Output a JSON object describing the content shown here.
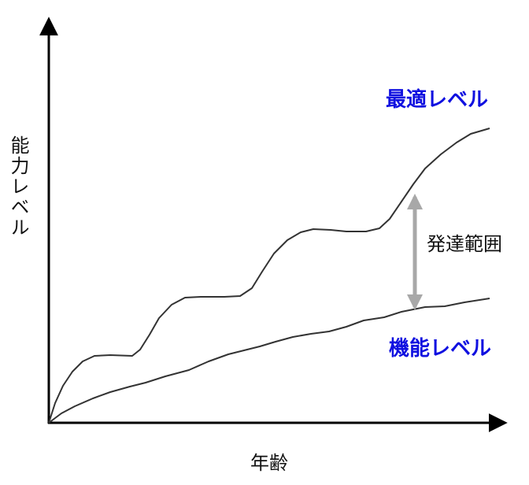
{
  "y_axis_label": "能力レベル",
  "x_axis_label": "年齢",
  "optimal_label": "最適レベル",
  "functional_label": "機能レベル",
  "range_label": "発達範囲"
}
